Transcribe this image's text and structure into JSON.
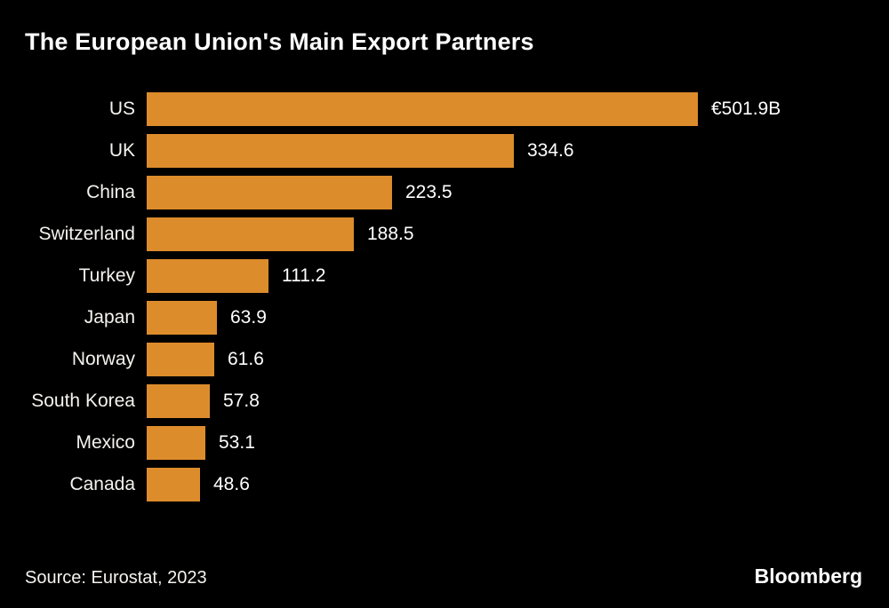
{
  "title": "The European Union's Main Export Partners",
  "footer": {
    "source": "Source: Eurostat, 2023",
    "brand": "Bloomberg"
  },
  "colors": {
    "background": "#000000",
    "bar": "#dd8c2c",
    "text": "#ffffff"
  },
  "chart_data": {
    "type": "bar",
    "orientation": "horizontal",
    "title": "The European Union's Main Export Partners",
    "unit": "€B",
    "categories": [
      "US",
      "UK",
      "China",
      "Switzerland",
      "Turkey",
      "Japan",
      "Norway",
      "South Korea",
      "Mexico",
      "Canada"
    ],
    "values": [
      501.9,
      334.6,
      223.5,
      188.5,
      111.2,
      63.9,
      61.6,
      57.8,
      53.1,
      48.6
    ],
    "value_labels": [
      "€501.9B",
      "334.6",
      "223.5",
      "188.5",
      "111.2",
      "63.9",
      "61.6",
      "57.8",
      "53.1",
      "48.6"
    ],
    "xlim": [
      0,
      501.9
    ],
    "grid": false,
    "legend": false
  }
}
